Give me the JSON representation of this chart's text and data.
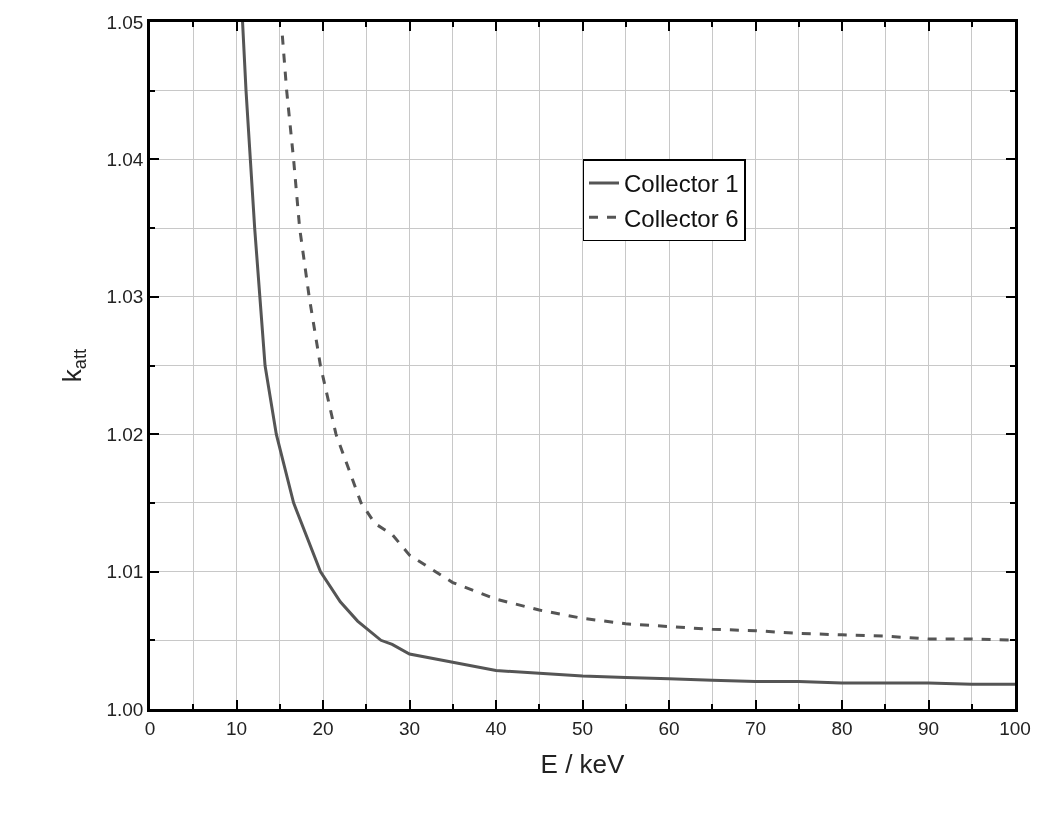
{
  "chart_data": {
    "type": "line",
    "xlabel": "E / keV",
    "ylabel": "k$_{att}$",
    "xlim": [
      0,
      100
    ],
    "xticks": [
      0,
      10,
      20,
      30,
      40,
      50,
      60,
      70,
      80,
      90,
      100
    ],
    "ylim": [
      1.0,
      1.05
    ],
    "yticks": [
      {
        "value": 1.0,
        "label": "1.00"
      },
      {
        "value": 1.01,
        "label": "1.01"
      },
      {
        "value": 1.02,
        "label": "1.02"
      },
      {
        "value": 1.03,
        "label": "1.03"
      },
      {
        "value": 1.04,
        "label": "1.04"
      },
      {
        "value": 1.05,
        "label": "1.05"
      }
    ],
    "grid": true,
    "legend": "top right",
    "marker": "none",
    "series": [
      {
        "name": "Collector 1",
        "color": "#555555",
        "line_style": "solid",
        "x": [
          10.7,
          11.1,
          11.6,
          12.1,
          12.7,
          13.3,
          14.6,
          16.6,
          19.7,
          22,
          24,
          26.7,
          28,
          30,
          35,
          40,
          45,
          50,
          55,
          60,
          65,
          70,
          75,
          80,
          85,
          90,
          95,
          100
        ],
        "values": [
          1.05,
          1.045,
          1.04,
          1.035,
          1.03,
          1.025,
          1.02,
          1.015,
          1.01,
          1.0078,
          1.0064,
          1.005,
          1.0047,
          1.004,
          1.0034,
          1.0028,
          1.0026,
          1.0024,
          1.0023,
          1.0022,
          1.0021,
          1.002,
          1.002,
          1.0019,
          1.0019,
          1.0019,
          1.0018,
          1.0018
        ]
      },
      {
        "name": "Collector 6",
        "color": "#555555",
        "line_style": "dashed",
        "x": [
          15.3,
          15.8,
          16.6,
          17.3,
          18.4,
          19.7,
          21.5,
          24.4,
          26,
          28,
          30,
          35,
          40,
          45,
          50,
          55,
          60,
          65,
          70,
          75,
          80,
          85,
          90,
          95,
          100
        ],
        "values": [
          1.049,
          1.045,
          1.04,
          1.035,
          1.03,
          1.025,
          1.02,
          1.015,
          1.0135,
          1.0127,
          1.0112,
          1.0092,
          1.008,
          1.0072,
          1.0066,
          1.0062,
          1.006,
          1.0058,
          1.0057,
          1.0055,
          1.0054,
          1.0053,
          1.0051,
          1.0051,
          1.005
        ]
      }
    ]
  }
}
